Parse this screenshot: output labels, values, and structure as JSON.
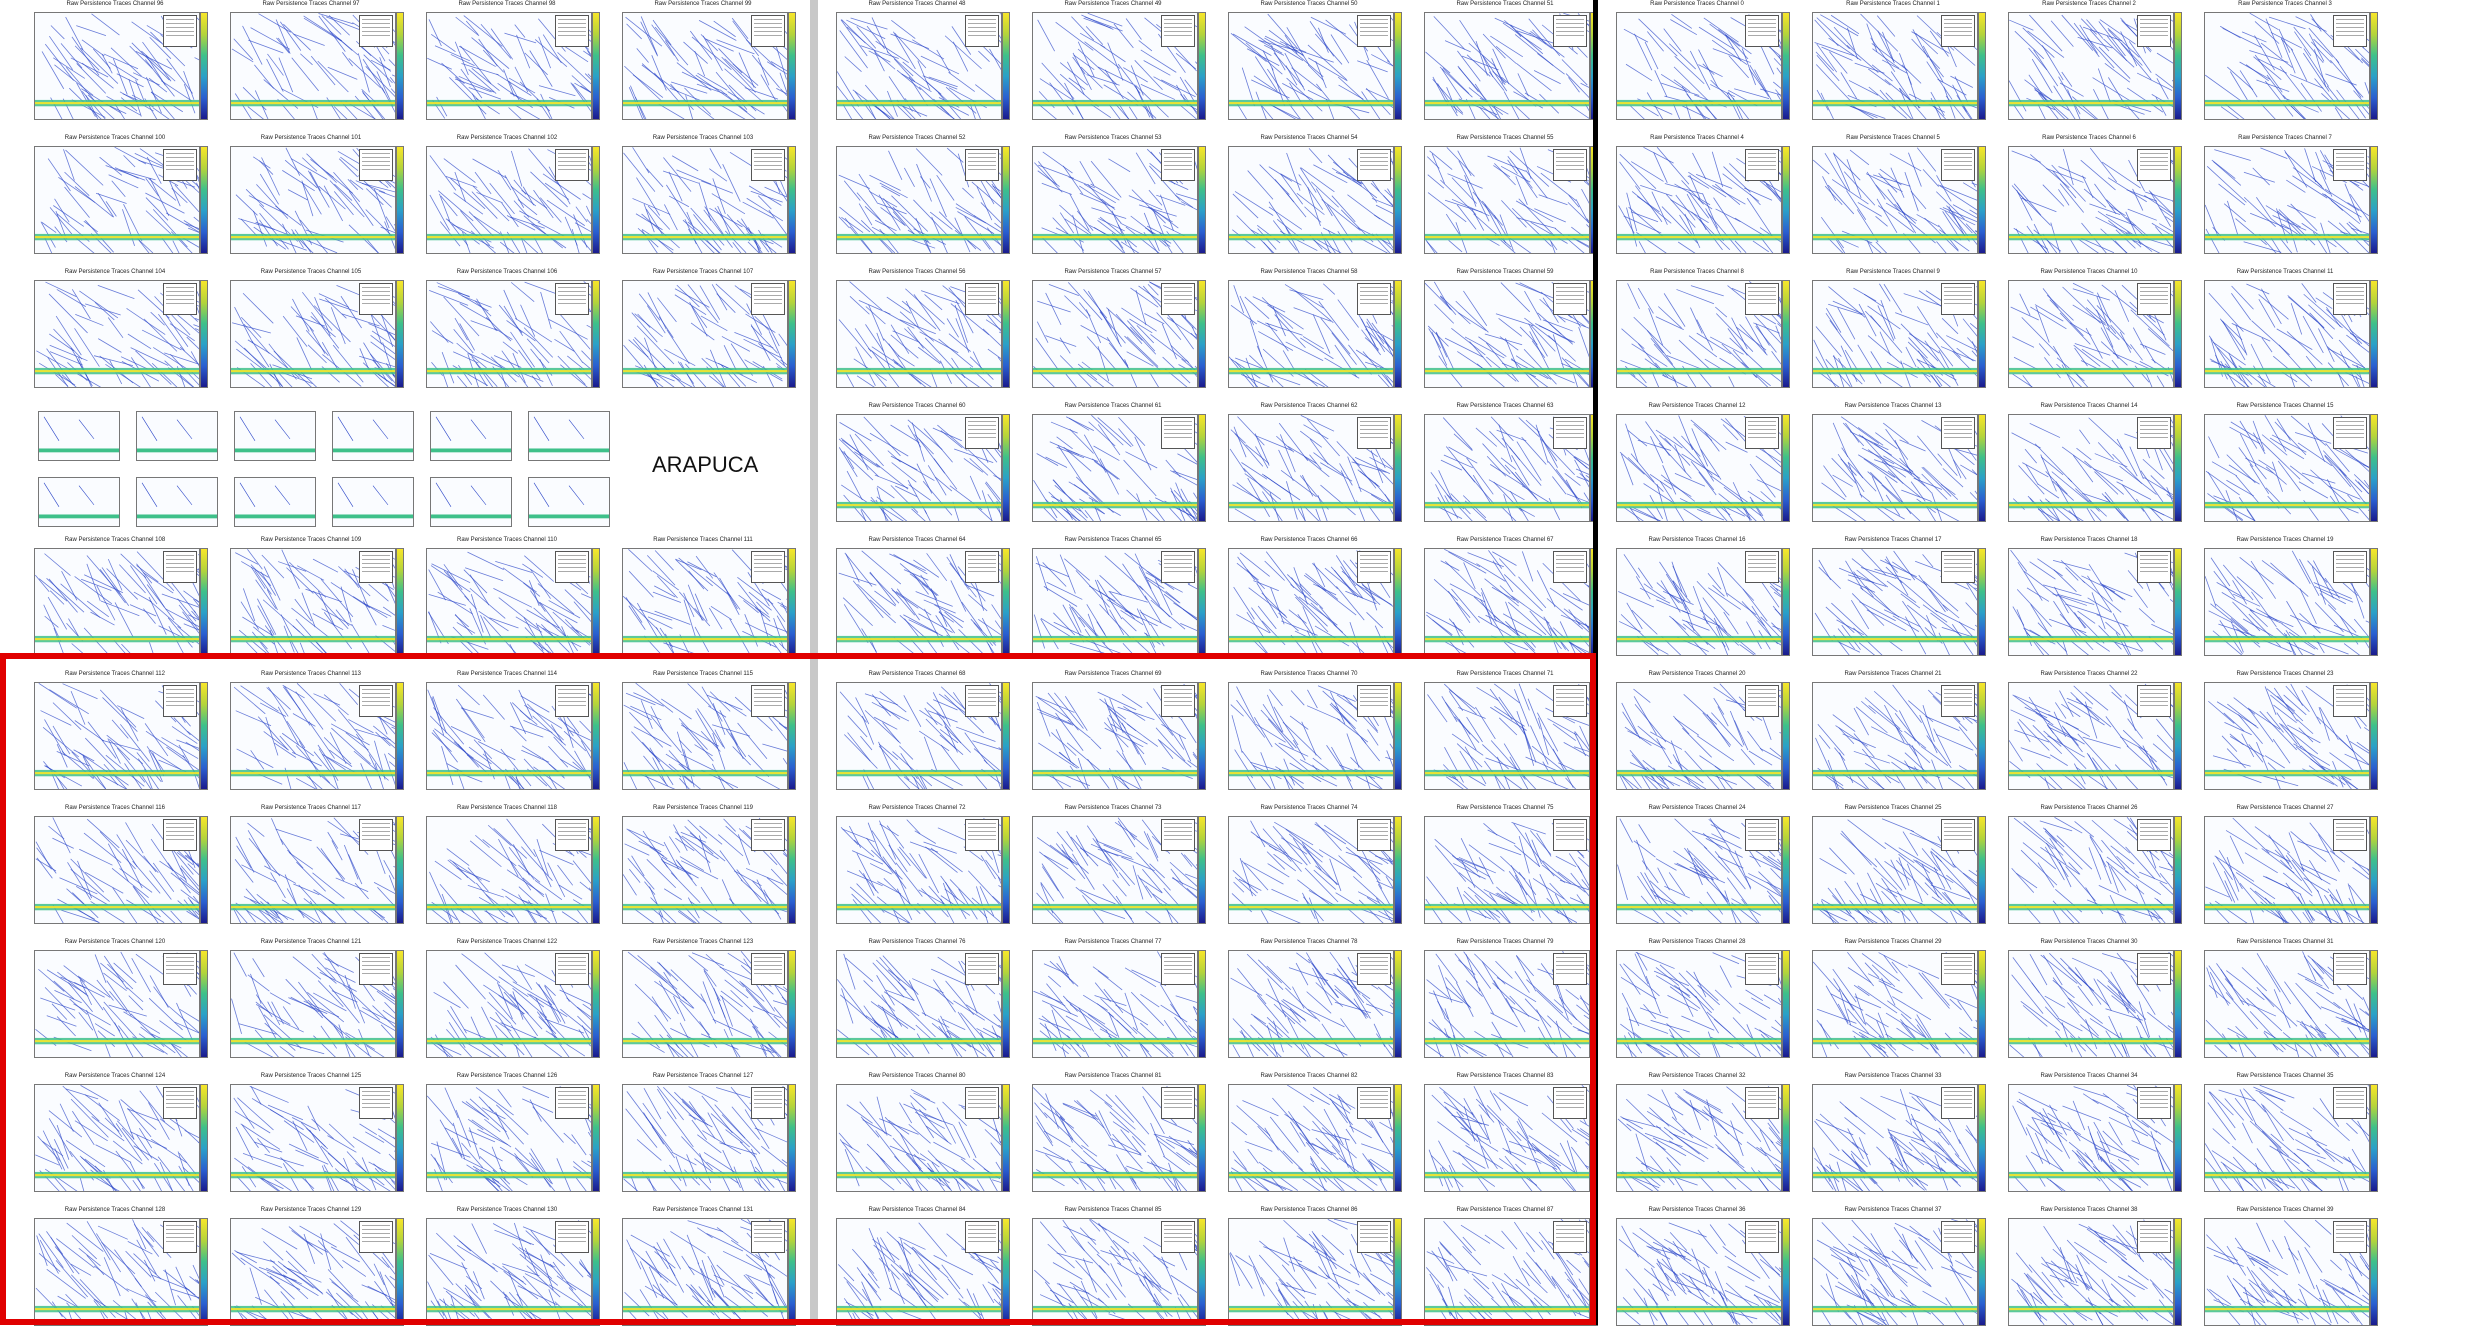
{
  "title_prefix": "Raw Persistence Traces Channel",
  "label": "ARAPUCA",
  "block_a_channels": [
    [
      96,
      97,
      98,
      99
    ],
    [
      100,
      101,
      102,
      103
    ],
    [
      104,
      105,
      106,
      107
    ],
    [],
    [
      108,
      109,
      110,
      111
    ],
    [
      112,
      113,
      114,
      115
    ],
    [
      116,
      117,
      118,
      119
    ],
    [
      120,
      121,
      122,
      123
    ],
    [
      124,
      125,
      126,
      127
    ],
    [
      128,
      129,
      130,
      131
    ]
  ],
  "block_b_channels": [
    [
      48,
      49,
      50,
      51
    ],
    [
      52,
      53,
      54,
      55
    ],
    [
      56,
      57,
      58,
      59
    ],
    [
      60,
      61,
      62,
      63
    ],
    [
      64,
      65,
      66,
      67
    ],
    [
      68,
      69,
      70,
      71
    ],
    [
      72,
      73,
      74,
      75
    ],
    [
      76,
      77,
      78,
      79
    ],
    [
      80,
      81,
      82,
      83
    ],
    [
      84,
      85,
      86,
      87
    ]
  ],
  "block_c_channels": [
    [
      0,
      1,
      2,
      3
    ],
    [
      4,
      5,
      6,
      7
    ],
    [
      8,
      9,
      10,
      11
    ],
    [
      12,
      13,
      14,
      15
    ],
    [
      16,
      17,
      18,
      19
    ],
    [
      20,
      21,
      22,
      23
    ],
    [
      24,
      25,
      26,
      27
    ],
    [
      28,
      29,
      30,
      31
    ],
    [
      32,
      33,
      34,
      35
    ],
    [
      36,
      37,
      38,
      39
    ]
  ],
  "colors": {
    "red_box": "#e00000",
    "divider_gray": "#c8c8c8",
    "divider_black": "#000000"
  }
}
